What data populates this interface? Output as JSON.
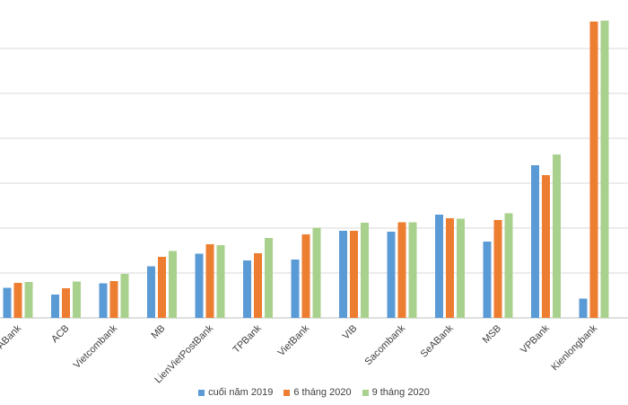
{
  "chart_data": {
    "type": "bar",
    "title": "",
    "xlabel": "",
    "ylabel": "",
    "ylim": [
      0,
      6.6
    ],
    "grid": true,
    "legend_position": "bottom",
    "categories": [
      "BacABank",
      "ACB",
      "Vietcombank",
      "MB",
      "LienVietPostBank",
      "TPBank",
      "VietBank",
      "VIB",
      "Sacombank",
      "SeABank",
      "MSB",
      "VPBank",
      "Kienlongbank"
    ],
    "series": [
      {
        "name": "cuối năm 2019",
        "color": "#5b9bd5",
        "values": [
          0.67,
          0.52,
          0.77,
          1.15,
          1.43,
          1.28,
          1.3,
          1.94,
          1.92,
          2.3,
          1.7,
          3.4,
          0.43
        ]
      },
      {
        "name": "6 tháng 2020",
        "color": "#ed7d31",
        "values": [
          0.78,
          0.66,
          0.82,
          1.36,
          1.64,
          1.44,
          1.86,
          1.94,
          2.13,
          2.22,
          2.18,
          3.18,
          6.6
        ]
      },
      {
        "name": "9 tháng 2020",
        "color": "#a9d18e",
        "values": [
          0.8,
          0.81,
          0.98,
          1.49,
          1.62,
          1.78,
          2.01,
          2.12,
          2.13,
          2.21,
          2.33,
          3.64,
          6.62
        ]
      }
    ]
  }
}
